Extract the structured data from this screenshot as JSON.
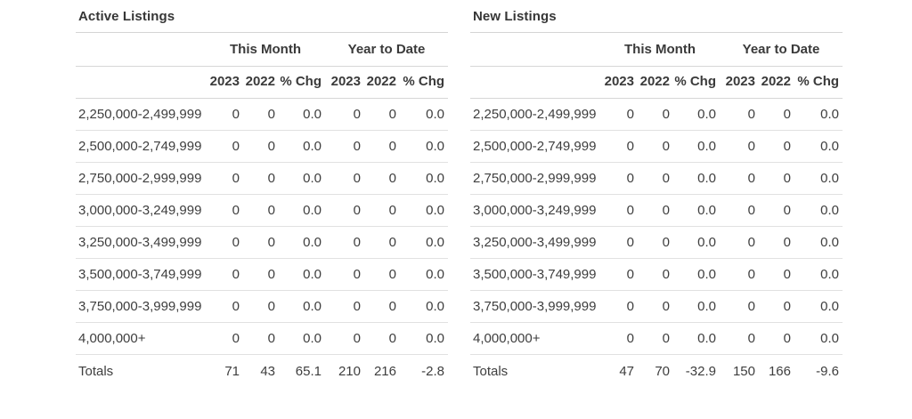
{
  "tables": [
    {
      "title": "Active Listings",
      "group_headers": [
        "This Month",
        "Year to Date"
      ],
      "column_headers": [
        "2023",
        "2022",
        "% Chg",
        "2023",
        "2022",
        "% Chg"
      ],
      "rows": [
        {
          "label": "2,250,000-2,499,999",
          "values": [
            "0",
            "0",
            "0.0",
            "0",
            "0",
            "0.0"
          ]
        },
        {
          "label": "2,500,000-2,749,999",
          "values": [
            "0",
            "0",
            "0.0",
            "0",
            "0",
            "0.0"
          ]
        },
        {
          "label": "2,750,000-2,999,999",
          "values": [
            "0",
            "0",
            "0.0",
            "0",
            "0",
            "0.0"
          ]
        },
        {
          "label": "3,000,000-3,249,999",
          "values": [
            "0",
            "0",
            "0.0",
            "0",
            "0",
            "0.0"
          ]
        },
        {
          "label": "3,250,000-3,499,999",
          "values": [
            "0",
            "0",
            "0.0",
            "0",
            "0",
            "0.0"
          ]
        },
        {
          "label": "3,500,000-3,749,999",
          "values": [
            "0",
            "0",
            "0.0",
            "0",
            "0",
            "0.0"
          ]
        },
        {
          "label": "3,750,000-3,999,999",
          "values": [
            "0",
            "0",
            "0.0",
            "0",
            "0",
            "0.0"
          ]
        },
        {
          "label": "4,000,000+",
          "values": [
            "0",
            "0",
            "0.0",
            "0",
            "0",
            "0.0"
          ]
        }
      ],
      "totals": {
        "label": "Totals",
        "values": [
          "71",
          "43",
          "65.1",
          "210",
          "216",
          "-2.8"
        ]
      }
    },
    {
      "title": "New Listings",
      "group_headers": [
        "This Month",
        "Year to Date"
      ],
      "column_headers": [
        "2023",
        "2022",
        "% Chg",
        "2023",
        "2022",
        "% Chg"
      ],
      "rows": [
        {
          "label": "2,250,000-2,499,999",
          "values": [
            "0",
            "0",
            "0.0",
            "0",
            "0",
            "0.0"
          ]
        },
        {
          "label": "2,500,000-2,749,999",
          "values": [
            "0",
            "0",
            "0.0",
            "0",
            "0",
            "0.0"
          ]
        },
        {
          "label": "2,750,000-2,999,999",
          "values": [
            "0",
            "0",
            "0.0",
            "0",
            "0",
            "0.0"
          ]
        },
        {
          "label": "3,000,000-3,249,999",
          "values": [
            "0",
            "0",
            "0.0",
            "0",
            "0",
            "0.0"
          ]
        },
        {
          "label": "3,250,000-3,499,999",
          "values": [
            "0",
            "0",
            "0.0",
            "0",
            "0",
            "0.0"
          ]
        },
        {
          "label": "3,500,000-3,749,999",
          "values": [
            "0",
            "0",
            "0.0",
            "0",
            "0",
            "0.0"
          ]
        },
        {
          "label": "3,750,000-3,999,999",
          "values": [
            "0",
            "0",
            "0.0",
            "0",
            "0",
            "0.0"
          ]
        },
        {
          "label": "4,000,000+",
          "values": [
            "0",
            "0",
            "0.0",
            "0",
            "0",
            "0.0"
          ]
        }
      ],
      "totals": {
        "label": "Totals",
        "values": [
          "47",
          "70",
          "-32.9",
          "150",
          "166",
          "-9.6"
        ]
      }
    }
  ],
  "colors": {
    "text": "#3e3e3e",
    "divider": "#d6d6d6",
    "row_divider": "#e1e1e1",
    "background": "#ffffff"
  }
}
